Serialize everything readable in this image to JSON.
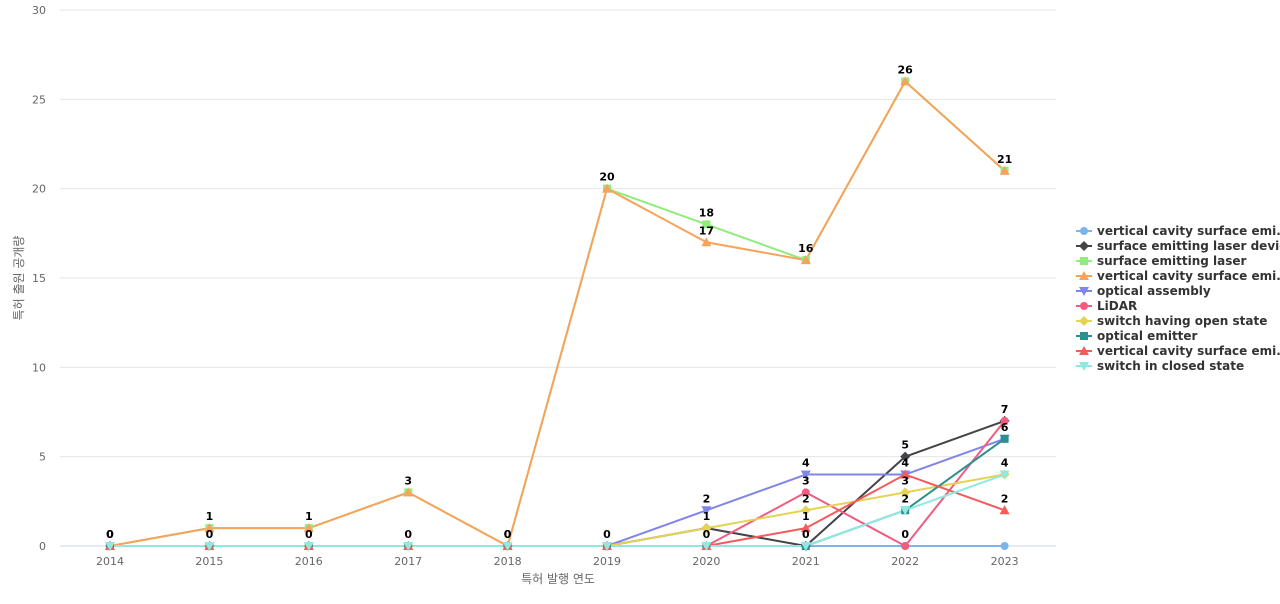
{
  "chart_data": {
    "type": "line",
    "xlabel": "특허 발행 연도",
    "ylabel": "특허 출원 공개량",
    "ylim": [
      0,
      30
    ],
    "yticks": [
      0,
      5,
      10,
      15,
      20,
      25,
      30
    ],
    "grid": true,
    "legend_position": "right",
    "x": [
      "2014",
      "2015",
      "2016",
      "2017",
      "2018",
      "2019",
      "2020",
      "2021",
      "2022",
      "2023"
    ],
    "series": [
      {
        "name": "vertical cavity surface emi...",
        "color": "#7cb5ec",
        "marker": "circle",
        "values": [
          0,
          0,
          0,
          0,
          0,
          0,
          0,
          0,
          0,
          0
        ],
        "labels": [
          0,
          0,
          0,
          0,
          0,
          null,
          null,
          null,
          null,
          null
        ]
      },
      {
        "name": "surface emitting laser device",
        "color": "#434348",
        "marker": "diamond",
        "values": [
          0,
          0,
          0,
          0,
          0,
          0,
          1,
          0,
          5,
          7
        ],
        "labels": [
          null,
          null,
          null,
          null,
          null,
          null,
          1,
          0,
          5,
          null
        ]
      },
      {
        "name": "surface emitting laser",
        "color": "#90ed7d",
        "marker": "square",
        "values": [
          0,
          1,
          1,
          3,
          0,
          20,
          18,
          16,
          26,
          21
        ],
        "labels": [
          null,
          null,
          null,
          null,
          null,
          null,
          18,
          null,
          null,
          null
        ]
      },
      {
        "name": "vertical cavity surface emi...",
        "color": "#f7a35c",
        "marker": "triangle",
        "values": [
          0,
          1,
          1,
          3,
          0,
          20,
          17,
          16,
          26,
          21
        ],
        "labels": [
          0,
          1,
          1,
          3,
          0,
          20,
          17,
          16,
          26,
          21
        ]
      },
      {
        "name": "optical assembly",
        "color": "#8085e9",
        "marker": "triangle-down",
        "values": [
          0,
          0,
          0,
          0,
          0,
          0,
          2,
          4,
          4,
          6
        ],
        "labels": [
          null,
          null,
          null,
          null,
          null,
          0,
          2,
          4,
          4,
          6
        ]
      },
      {
        "name": "LiDAR",
        "color": "#f15c80",
        "marker": "circle",
        "values": [
          0,
          0,
          0,
          0,
          0,
          0,
          0,
          3,
          0,
          7
        ],
        "labels": [
          null,
          null,
          null,
          null,
          null,
          null,
          0,
          3,
          0,
          7
        ]
      },
      {
        "name": "switch having open state",
        "color": "#e4d354",
        "marker": "diamond",
        "values": [
          0,
          0,
          0,
          0,
          0,
          0,
          1,
          2,
          3,
          4
        ],
        "labels": [
          null,
          null,
          null,
          null,
          null,
          null,
          null,
          2,
          3,
          4
        ]
      },
      {
        "name": "optical emitter",
        "color": "#2b908f",
        "marker": "square",
        "values": [
          0,
          0,
          0,
          0,
          0,
          0,
          0,
          0,
          2,
          6
        ],
        "labels": [
          null,
          null,
          null,
          null,
          null,
          null,
          null,
          null,
          null,
          null
        ]
      },
      {
        "name": "vertical cavity surface emi...",
        "color": "#f45b5b",
        "marker": "triangle",
        "values": [
          0,
          0,
          0,
          0,
          0,
          0,
          0,
          1,
          4,
          2
        ],
        "labels": [
          null,
          null,
          null,
          null,
          null,
          null,
          null,
          1,
          null,
          2
        ]
      },
      {
        "name": "switch in closed state",
        "color": "#91e8e1",
        "marker": "triangle-down",
        "values": [
          0,
          0,
          0,
          0,
          0,
          0,
          0,
          0,
          2,
          4
        ],
        "labels": [
          null,
          null,
          null,
          null,
          null,
          null,
          null,
          null,
          2,
          null
        ]
      }
    ]
  }
}
